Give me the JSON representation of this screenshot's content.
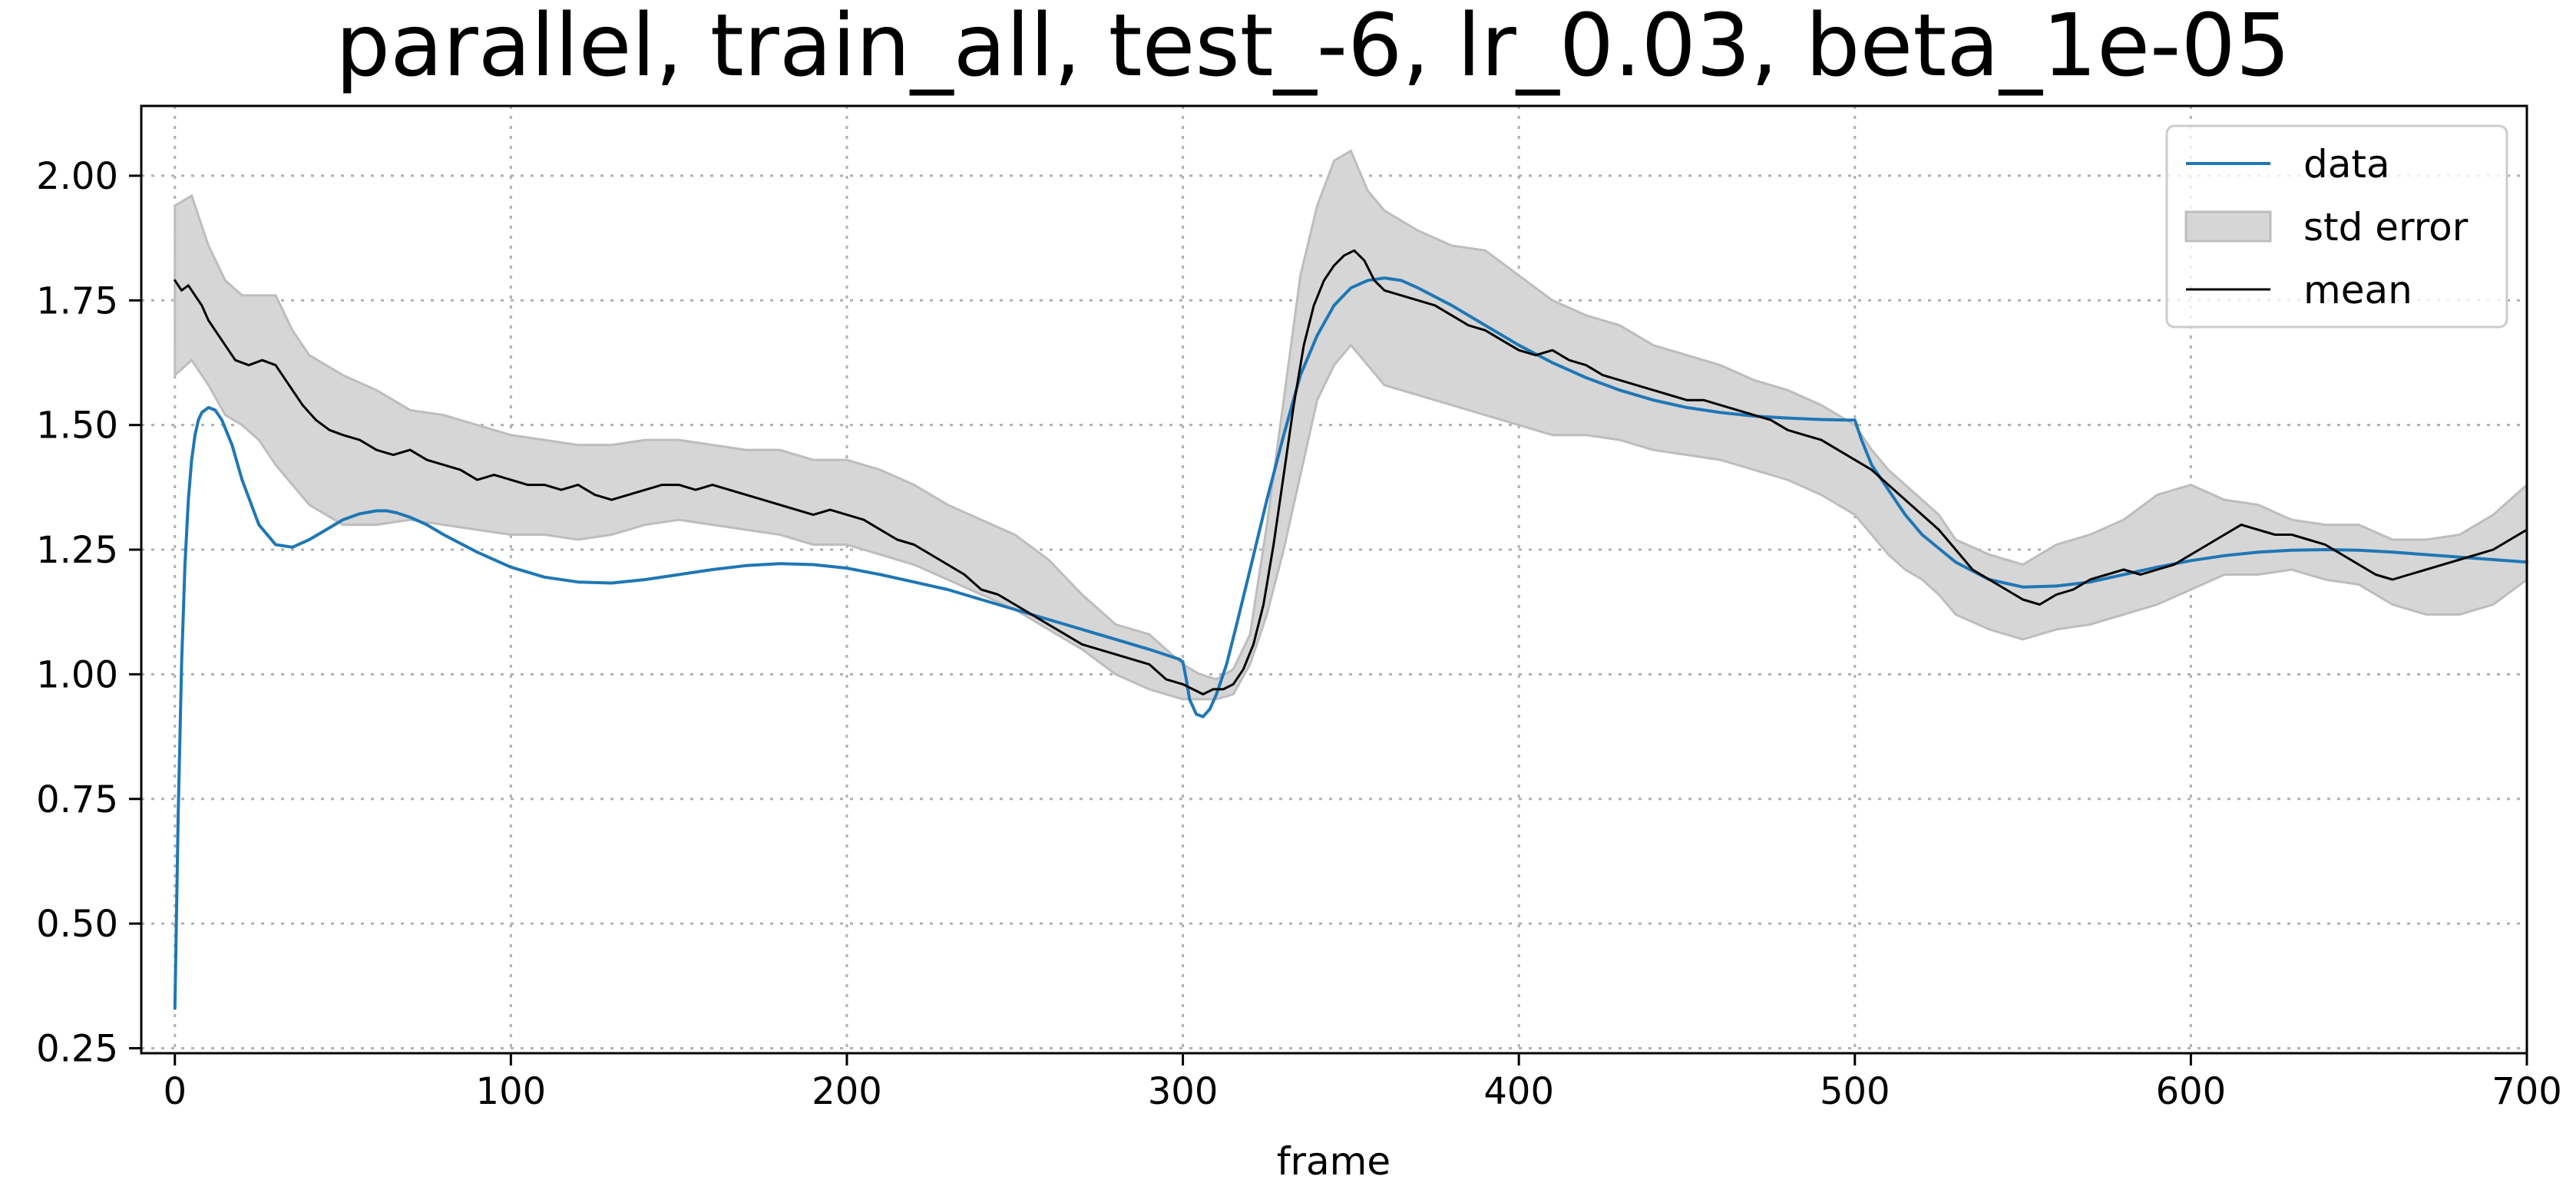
{
  "chart_data": {
    "type": "line",
    "title": "parallel, train_all, test_-6, lr_0.03, beta_1e-05",
    "xlabel": "frame",
    "ylabel": "",
    "xlim": [
      -10,
      700
    ],
    "ylim": [
      0.24,
      2.14
    ],
    "xticks": [
      0,
      100,
      200,
      300,
      400,
      500,
      600,
      700
    ],
    "xtick_labels": [
      "0",
      "100",
      "200",
      "300",
      "400",
      "500",
      "600",
      "700"
    ],
    "yticks": [
      0.25,
      0.5,
      0.75,
      1.0,
      1.25,
      1.5,
      1.75,
      2.0
    ],
    "ytick_labels": [
      "0.25",
      "0.50",
      "0.75",
      "1.00",
      "1.25",
      "1.50",
      "1.75",
      "2.00"
    ],
    "grid": true,
    "legend_position": "top-right",
    "colors": {
      "data": "#1f77b4",
      "mean": "#000000",
      "std_band_fill": "#d6d6d6",
      "std_band_edge": "#bdbdbd",
      "grid": "#b0b0b0",
      "axes": "#000000"
    },
    "series": [
      {
        "name": "data",
        "x": [
          0,
          1,
          2,
          3,
          4,
          5,
          6,
          7,
          8,
          10,
          12,
          14,
          17,
          20,
          25,
          30,
          35,
          40,
          45,
          50,
          55,
          60,
          63,
          66,
          70,
          75,
          80,
          90,
          100,
          110,
          120,
          130,
          140,
          150,
          160,
          170,
          180,
          190,
          200,
          210,
          220,
          230,
          240,
          250,
          260,
          270,
          280,
          290,
          299,
          300,
          301,
          302,
          304,
          306,
          308,
          310,
          313,
          316,
          320,
          325,
          330,
          335,
          340,
          345,
          350,
          355,
          360,
          365,
          370,
          380,
          390,
          400,
          410,
          420,
          430,
          440,
          450,
          460,
          470,
          480,
          490,
          498,
          500,
          502,
          505,
          510,
          515,
          520,
          530,
          540,
          550,
          560,
          570,
          580,
          590,
          600,
          610,
          620,
          630,
          640,
          650,
          660,
          670,
          680,
          690,
          700
        ],
        "y": [
          0.33,
          0.72,
          1.02,
          1.22,
          1.35,
          1.43,
          1.48,
          1.51,
          1.525,
          1.535,
          1.53,
          1.51,
          1.46,
          1.39,
          1.3,
          1.26,
          1.255,
          1.27,
          1.29,
          1.31,
          1.322,
          1.328,
          1.328,
          1.324,
          1.315,
          1.3,
          1.28,
          1.245,
          1.215,
          1.195,
          1.185,
          1.183,
          1.19,
          1.2,
          1.21,
          1.218,
          1.222,
          1.22,
          1.213,
          1.2,
          1.185,
          1.17,
          1.15,
          1.13,
          1.11,
          1.09,
          1.07,
          1.05,
          1.03,
          1.025,
          0.99,
          0.95,
          0.92,
          0.915,
          0.93,
          0.96,
          1.02,
          1.1,
          1.21,
          1.35,
          1.48,
          1.6,
          1.68,
          1.74,
          1.775,
          1.79,
          1.795,
          1.79,
          1.775,
          1.74,
          1.7,
          1.66,
          1.625,
          1.595,
          1.57,
          1.55,
          1.535,
          1.525,
          1.518,
          1.514,
          1.511,
          1.51,
          1.51,
          1.47,
          1.42,
          1.37,
          1.32,
          1.28,
          1.225,
          1.19,
          1.175,
          1.177,
          1.185,
          1.2,
          1.215,
          1.228,
          1.238,
          1.245,
          1.249,
          1.25,
          1.249,
          1.245,
          1.24,
          1.235,
          1.23,
          1.225
        ]
      },
      {
        "name": "mean",
        "x": [
          0,
          2,
          4,
          6,
          8,
          10,
          14,
          18,
          22,
          26,
          30,
          34,
          38,
          42,
          46,
          50,
          55,
          60,
          65,
          70,
          75,
          80,
          85,
          90,
          95,
          100,
          105,
          110,
          115,
          120,
          125,
          130,
          135,
          140,
          145,
          150,
          155,
          160,
          165,
          170,
          175,
          180,
          185,
          190,
          195,
          200,
          205,
          210,
          215,
          220,
          225,
          230,
          235,
          240,
          245,
          250,
          255,
          260,
          265,
          270,
          275,
          280,
          285,
          290,
          295,
          300,
          303,
          306,
          309,
          312,
          315,
          318,
          321,
          324,
          327,
          330,
          333,
          336,
          339,
          342,
          345,
          348,
          351,
          354,
          357,
          360,
          365,
          370,
          375,
          380,
          385,
          390,
          395,
          400,
          405,
          410,
          415,
          420,
          425,
          430,
          435,
          440,
          445,
          450,
          455,
          460,
          465,
          470,
          475,
          480,
          485,
          490,
          495,
          500,
          505,
          510,
          515,
          520,
          525,
          530,
          535,
          540,
          545,
          550,
          555,
          560,
          565,
          570,
          575,
          580,
          585,
          590,
          595,
          600,
          605,
          610,
          615,
          620,
          625,
          630,
          635,
          640,
          645,
          650,
          655,
          660,
          665,
          670,
          675,
          680,
          685,
          690,
          695,
          700
        ],
        "y": [
          1.79,
          1.77,
          1.78,
          1.76,
          1.74,
          1.71,
          1.67,
          1.63,
          1.62,
          1.63,
          1.62,
          1.58,
          1.54,
          1.51,
          1.49,
          1.48,
          1.47,
          1.45,
          1.44,
          1.45,
          1.43,
          1.42,
          1.41,
          1.39,
          1.4,
          1.39,
          1.38,
          1.38,
          1.37,
          1.38,
          1.36,
          1.35,
          1.36,
          1.37,
          1.38,
          1.38,
          1.37,
          1.38,
          1.37,
          1.36,
          1.35,
          1.34,
          1.33,
          1.32,
          1.33,
          1.32,
          1.31,
          1.29,
          1.27,
          1.26,
          1.24,
          1.22,
          1.2,
          1.17,
          1.16,
          1.14,
          1.12,
          1.1,
          1.08,
          1.06,
          1.05,
          1.04,
          1.03,
          1.02,
          0.99,
          0.98,
          0.97,
          0.96,
          0.97,
          0.97,
          0.98,
          1.01,
          1.06,
          1.14,
          1.26,
          1.4,
          1.54,
          1.66,
          1.74,
          1.79,
          1.82,
          1.84,
          1.85,
          1.83,
          1.79,
          1.77,
          1.76,
          1.75,
          1.74,
          1.72,
          1.7,
          1.69,
          1.67,
          1.65,
          1.64,
          1.65,
          1.63,
          1.62,
          1.6,
          1.59,
          1.58,
          1.57,
          1.56,
          1.55,
          1.55,
          1.54,
          1.53,
          1.52,
          1.51,
          1.49,
          1.48,
          1.47,
          1.45,
          1.43,
          1.41,
          1.38,
          1.35,
          1.32,
          1.29,
          1.25,
          1.21,
          1.19,
          1.17,
          1.15,
          1.14,
          1.16,
          1.17,
          1.19,
          1.2,
          1.21,
          1.2,
          1.21,
          1.22,
          1.24,
          1.26,
          1.28,
          1.3,
          1.29,
          1.28,
          1.28,
          1.27,
          1.26,
          1.24,
          1.22,
          1.2,
          1.19,
          1.2,
          1.21,
          1.22,
          1.23,
          1.24,
          1.25,
          1.27,
          1.29
        ]
      }
    ],
    "std_error": {
      "name": "std error",
      "x": [
        0,
        5,
        10,
        15,
        20,
        25,
        30,
        35,
        40,
        50,
        60,
        70,
        80,
        90,
        100,
        110,
        120,
        130,
        140,
        150,
        160,
        170,
        180,
        190,
        200,
        210,
        220,
        230,
        240,
        250,
        260,
        270,
        280,
        290,
        300,
        305,
        310,
        315,
        320,
        325,
        330,
        335,
        340,
        345,
        350,
        355,
        360,
        370,
        380,
        390,
        400,
        410,
        420,
        430,
        440,
        450,
        460,
        470,
        480,
        490,
        500,
        505,
        510,
        515,
        520,
        525,
        530,
        540,
        550,
        560,
        570,
        580,
        590,
        600,
        610,
        620,
        630,
        640,
        650,
        660,
        670,
        680,
        690,
        700
      ],
      "lower": [
        1.6,
        1.63,
        1.58,
        1.52,
        1.5,
        1.47,
        1.42,
        1.38,
        1.34,
        1.3,
        1.3,
        1.31,
        1.3,
        1.29,
        1.28,
        1.28,
        1.27,
        1.28,
        1.3,
        1.31,
        1.3,
        1.29,
        1.28,
        1.26,
        1.26,
        1.24,
        1.22,
        1.19,
        1.16,
        1.13,
        1.09,
        1.05,
        1.0,
        0.97,
        0.95,
        0.95,
        0.95,
        0.96,
        1.02,
        1.12,
        1.25,
        1.4,
        1.55,
        1.62,
        1.66,
        1.62,
        1.58,
        1.56,
        1.54,
        1.52,
        1.5,
        1.48,
        1.48,
        1.47,
        1.45,
        1.44,
        1.43,
        1.41,
        1.39,
        1.36,
        1.32,
        1.28,
        1.24,
        1.21,
        1.19,
        1.16,
        1.12,
        1.09,
        1.07,
        1.09,
        1.1,
        1.12,
        1.14,
        1.17,
        1.2,
        1.2,
        1.21,
        1.19,
        1.18,
        1.14,
        1.12,
        1.12,
        1.14,
        1.19
      ],
      "upper": [
        1.94,
        1.96,
        1.86,
        1.79,
        1.76,
        1.76,
        1.76,
        1.69,
        1.64,
        1.6,
        1.57,
        1.53,
        1.52,
        1.5,
        1.48,
        1.47,
        1.46,
        1.46,
        1.47,
        1.47,
        1.46,
        1.45,
        1.45,
        1.43,
        1.43,
        1.41,
        1.38,
        1.34,
        1.31,
        1.28,
        1.23,
        1.16,
        1.1,
        1.08,
        1.02,
        1.0,
        0.99,
        1.01,
        1.08,
        1.3,
        1.55,
        1.8,
        1.94,
        2.03,
        2.05,
        1.97,
        1.93,
        1.89,
        1.86,
        1.85,
        1.8,
        1.75,
        1.72,
        1.7,
        1.66,
        1.64,
        1.62,
        1.59,
        1.57,
        1.54,
        1.5,
        1.45,
        1.41,
        1.38,
        1.35,
        1.32,
        1.27,
        1.24,
        1.22,
        1.26,
        1.28,
        1.31,
        1.36,
        1.38,
        1.35,
        1.34,
        1.31,
        1.3,
        1.3,
        1.27,
        1.27,
        1.28,
        1.32,
        1.38
      ]
    },
    "legend": [
      {
        "label": "data",
        "kind": "line",
        "color": "#1f77b4"
      },
      {
        "label": "std error",
        "kind": "patch",
        "color": "#d6d6d6"
      },
      {
        "label": "mean",
        "kind": "line",
        "color": "#000000"
      }
    ]
  }
}
